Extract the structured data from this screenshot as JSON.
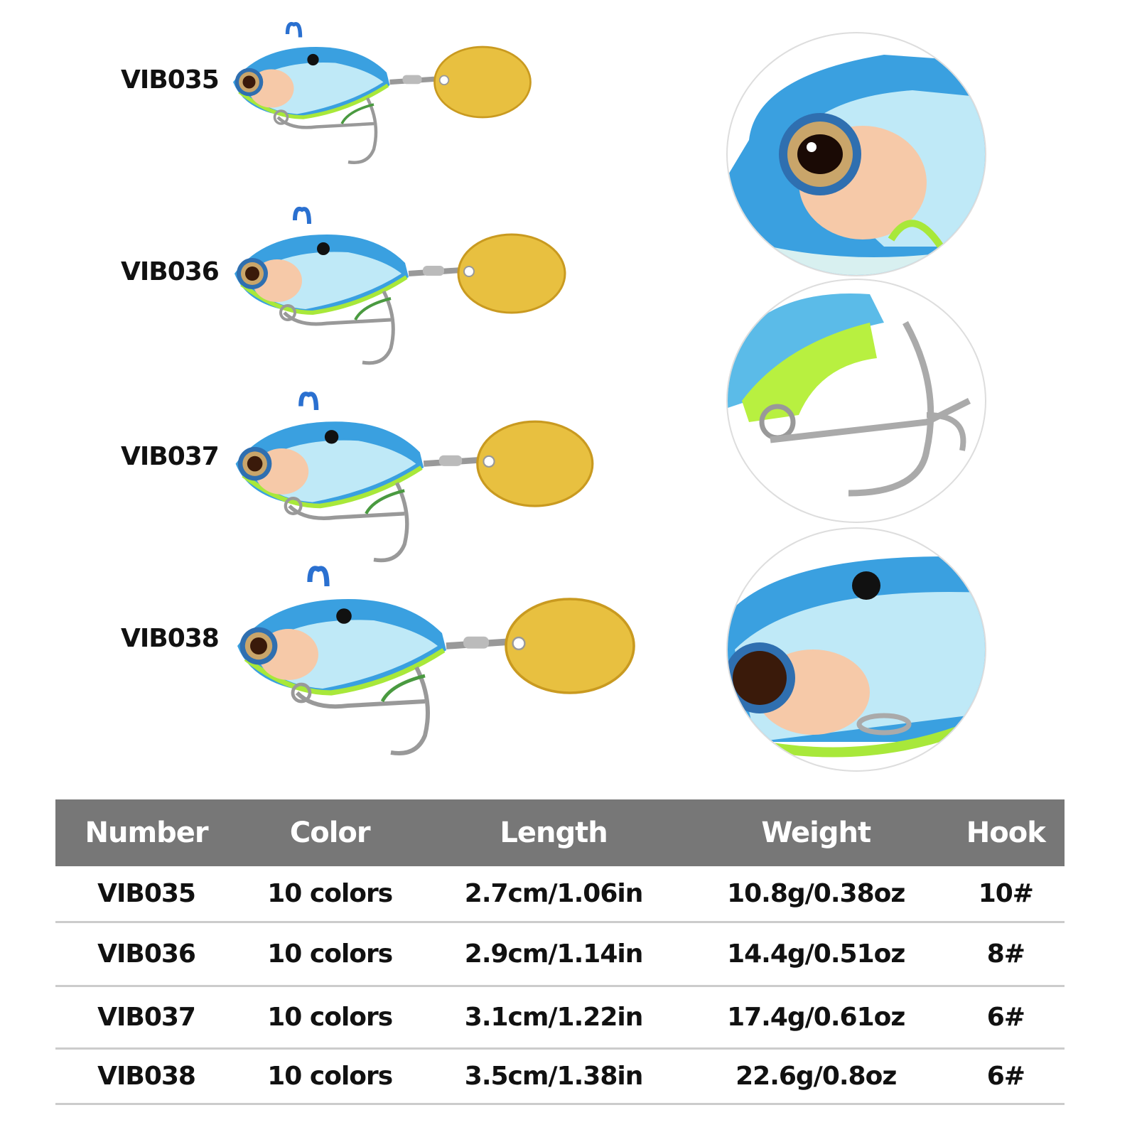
{
  "lures": [
    {
      "label": "VIB035"
    },
    {
      "label": "VIB036"
    },
    {
      "label": "VIB037"
    },
    {
      "label": "VIB038"
    }
  ],
  "detail_views": [
    "eye-closeup",
    "hook-closeup",
    "body-closeup"
  ],
  "colors": {
    "body_blue": "#3aa0e0",
    "body_light": "#bfe9f7",
    "belly_green": "#a8e83a",
    "blade_gold": "#e8c040",
    "header_gray": "#777777"
  },
  "table": {
    "headers": [
      "Number",
      "Color",
      "Length",
      "Weight",
      "Hook"
    ],
    "rows": [
      [
        "VIB035",
        "10 colors",
        "2.7cm/1.06in",
        "10.8g/0.38oz",
        "10#"
      ],
      [
        "VIB036",
        "10 colors",
        "2.9cm/1.14in",
        "14.4g/0.51oz",
        "8#"
      ],
      [
        "VIB037",
        "10 colors",
        "3.1cm/1.22in",
        "17.4g/0.61oz",
        "6#"
      ],
      [
        "VIB038",
        "10 colors",
        "3.5cm/1.38in",
        "22.6g/0.8oz",
        "6#"
      ]
    ]
  }
}
